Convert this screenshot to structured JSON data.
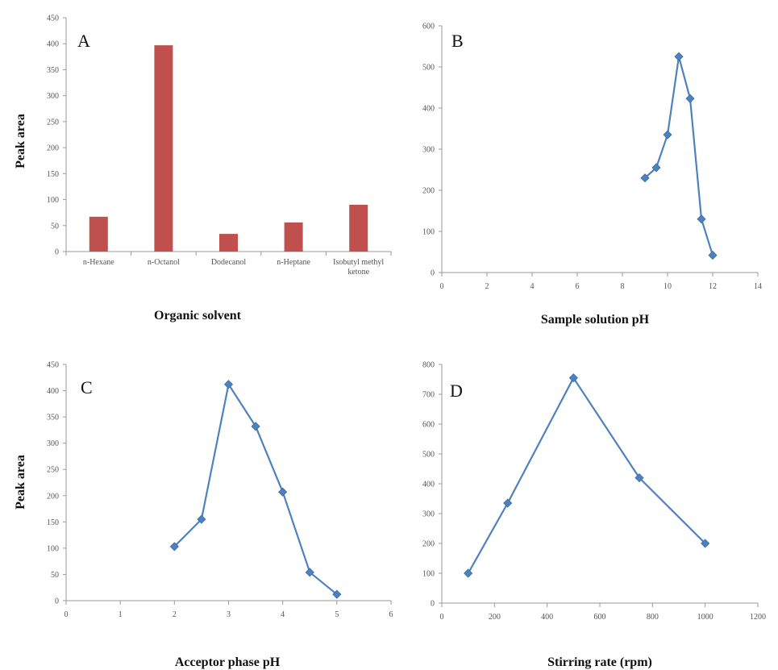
{
  "chart_data": [
    {
      "panel": "A",
      "type": "bar",
      "categories": [
        "n-Hexane",
        "n-Octanol",
        "Dodecanol",
        "n-Heptane",
        "Isobutyl methyl ketone"
      ],
      "values": [
        67,
        397,
        34,
        56,
        90
      ],
      "xlabel": "Organic solvent",
      "ylabel": "Peak area",
      "ylim": [
        0,
        450
      ],
      "yticks": [
        0,
        50,
        100,
        150,
        200,
        250,
        300,
        350,
        400,
        450
      ],
      "color": "#c0504d",
      "grid": false
    },
    {
      "panel": "B",
      "type": "line",
      "x": [
        9,
        9.5,
        10,
        10.5,
        11,
        11.5,
        12
      ],
      "y": [
        230,
        255,
        335,
        525,
        423,
        130,
        42
      ],
      "xlabel": "Sample solution pH",
      "ylabel": "",
      "xlim": [
        0,
        14
      ],
      "ylim": [
        0,
        600
      ],
      "xticks": [
        0,
        2,
        4,
        6,
        8,
        10,
        12,
        14
      ],
      "yticks": [
        0,
        100,
        200,
        300,
        400,
        500,
        600
      ],
      "color": "#4f81bd",
      "grid": false
    },
    {
      "panel": "C",
      "type": "line",
      "x": [
        2,
        2.5,
        3,
        3.5,
        4,
        4.5,
        5
      ],
      "y": [
        103,
        155,
        412,
        332,
        207,
        54,
        12
      ],
      "xlabel": "Acceptor phase pH",
      "ylabel": "Peak area",
      "xlim": [
        0,
        6
      ],
      "ylim": [
        0,
        450
      ],
      "xticks": [
        0,
        1,
        2,
        3,
        4,
        5,
        6
      ],
      "yticks": [
        0,
        50,
        100,
        150,
        200,
        250,
        300,
        350,
        400,
        450
      ],
      "color": "#4f81bd",
      "grid": false
    },
    {
      "panel": "D",
      "type": "line",
      "x": [
        100,
        250,
        500,
        750,
        1000
      ],
      "y": [
        100,
        335,
        755,
        420,
        200
      ],
      "xlabel": "Stirring rate (rpm)",
      "ylabel": "",
      "xlim": [
        0,
        1200
      ],
      "ylim": [
        0,
        800
      ],
      "xticks": [
        0,
        200,
        400,
        600,
        800,
        1000,
        1200
      ],
      "yticks": [
        0,
        100,
        200,
        300,
        400,
        500,
        600,
        700,
        800
      ],
      "color": "#4f81bd",
      "grid": false
    }
  ]
}
